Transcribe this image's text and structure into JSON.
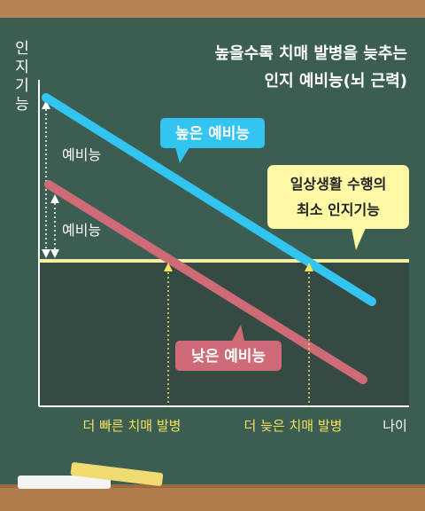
{
  "title": {
    "line1": "높을수록 치매 발병을 늦추는",
    "line2": "인지 예비능(뇌 근력)"
  },
  "y_axis_label": [
    "인",
    "지",
    "기",
    "능"
  ],
  "x_axis_label": "나이",
  "bracket_labels": {
    "high": "예비능",
    "low": "예비능"
  },
  "threshold_callout": {
    "line1": "일상생활 수행의",
    "line2": "최소 인지기능"
  },
  "series": {
    "high": {
      "label": "높은 예비능",
      "color": "#33c5f1"
    },
    "low": {
      "label": "낮은 예비능",
      "color": "#cf6b76"
    }
  },
  "onset_labels": {
    "early": "더 빠른 치매 발병",
    "late": "더 늦은 치매 발병"
  },
  "colors": {
    "board": "#3c5e52",
    "frame": "#b58456",
    "below_threshold": "#344a43",
    "threshold": "#f5efa3",
    "onset_text": "#f5e45a",
    "callout": "#fff9a6"
  }
}
